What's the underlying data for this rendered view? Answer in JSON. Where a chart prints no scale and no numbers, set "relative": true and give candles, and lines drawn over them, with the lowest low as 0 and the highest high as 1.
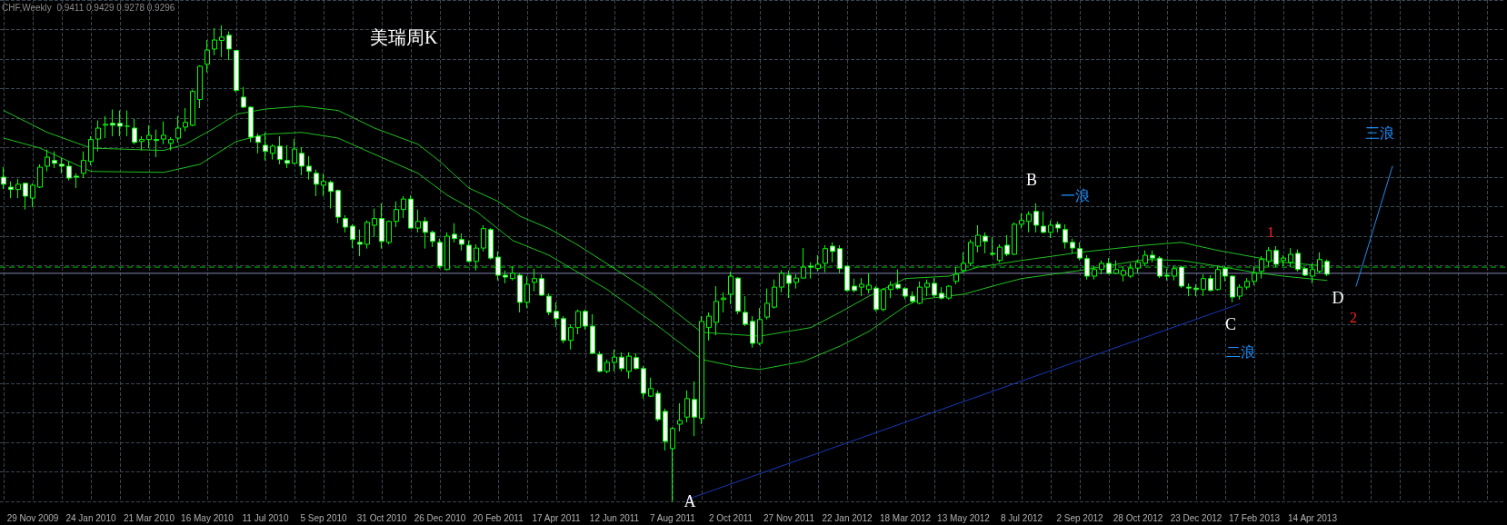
{
  "chart_data": {
    "type": "candlestick",
    "title": "美瑞周K",
    "relative": true,
    "grid": true,
    "tick_labels": "x",
    "annotations": [
      "CHF,Weekly  0.9411 0.9429 0.9278 0.9296",
      {
        "text": "A",
        "y": 0
      },
      {
        "text": "B",
        "y": 0.586
      },
      "一浪",
      {
        "text": "C",
        "y": 0.431
      },
      "二浪",
      "1",
      "D",
      "2",
      "三浪"
    ],
    "categories": [
      null,
      null,
      null,
      null,
      "29 Nov 2009",
      null,
      null,
      null,
      null,
      null,
      null,
      null,
      "24 Jan 2010",
      null,
      null,
      null,
      null,
      null,
      null,
      null,
      "21 Mar 2010",
      null,
      null,
      null,
      null,
      null,
      null,
      null,
      "16 May 2010",
      null,
      null,
      null,
      null,
      null,
      null,
      null,
      "11 Jul 2010",
      null,
      null,
      null,
      null,
      null,
      null,
      null,
      "5 Sep 2010",
      null,
      null,
      null,
      null,
      null,
      null,
      null,
      "31 Oct 2010",
      null,
      null,
      null,
      null,
      null,
      null,
      null,
      "26 Dec 2010",
      null,
      null,
      null,
      null,
      null,
      null,
      null,
      "20 Feb 2011",
      null,
      null,
      null,
      null,
      null,
      null,
      null,
      "17 Apr 2011",
      null,
      null,
      null,
      null,
      null,
      null,
      null,
      "12 Jun 2011",
      null,
      null,
      null,
      null,
      null,
      null,
      null,
      "7 Aug 2011",
      null,
      null,
      null,
      null,
      null,
      null,
      null,
      "2 Oct 2011",
      null,
      null,
      null,
      null,
      null,
      null,
      null,
      "27 Nov 2011",
      null,
      null,
      null,
      null,
      null,
      null,
      null,
      "22 Jan 2012",
      null,
      null,
      null,
      null,
      null,
      null,
      null,
      "18 Mar 2012",
      null,
      null,
      null,
      null,
      null,
      null,
      null,
      "13 May 2012",
      null,
      null,
      null,
      null,
      null,
      null,
      null,
      "8 Jul 2012",
      null,
      null,
      null,
      null,
      null,
      null,
      null,
      "2 Sep 2012",
      null,
      null,
      null,
      null,
      null,
      null,
      null,
      "28 Oct 2012",
      null,
      null,
      null,
      null,
      null,
      null,
      null,
      "23 Dec 2012",
      null,
      null,
      null,
      null,
      null,
      null,
      null,
      "17 Feb 2013",
      null,
      null,
      null,
      null,
      null,
      null,
      null,
      "14 Apr 2013",
      null,
      null,
      null,
      null,
      null,
      null,
      null,
      null,
      null,
      null,
      null,
      null,
      null,
      null,
      null,
      null,
      null,
      null,
      null,
      null,
      null,
      null,
      null,
      null,
      null,
      null
    ],
    "ref_lines": [
      {
        "axis": "y",
        "value": 0.492,
        "color": "#00c000",
        "line_style": "dashed"
      },
      {
        "axis": "y",
        "value": 0.479,
        "color": "#8080b0",
        "line_style": "solid"
      }
    ],
    "series": [
      {
        "color": "#00ff00",
        "ohlc": [
          [
            0.681,
            0.702,
            0.656,
            0.666
          ],
          [
            0.66,
            0.672,
            0.637,
            0.655
          ],
          [
            0.655,
            0.677,
            0.637,
            0.666
          ],
          [
            0.668,
            0.668,
            0.613,
            0.641
          ],
          [
            0.637,
            0.668,
            0.618,
            0.664
          ],
          [
            0.66,
            0.708,
            0.658,
            0.702
          ],
          [
            0.704,
            0.739,
            0.693,
            0.723
          ],
          [
            0.716,
            0.735,
            0.7,
            0.71
          ],
          [
            0.708,
            0.721,
            0.689,
            0.704
          ],
          [
            0.704,
            0.714,
            0.674,
            0.679
          ],
          [
            0.683,
            0.689,
            0.658,
            0.681
          ],
          [
            0.689,
            0.735,
            0.679,
            0.716
          ],
          [
            0.714,
            0.767,
            0.706,
            0.76
          ],
          [
            0.761,
            0.8,
            0.735,
            0.784
          ],
          [
            0.79,
            0.809,
            0.763,
            0.792
          ],
          [
            0.794,
            0.823,
            0.767,
            0.79
          ],
          [
            0.794,
            0.821,
            0.767,
            0.788
          ],
          [
            0.788,
            0.821,
            0.767,
            0.788
          ],
          [
            0.784,
            0.803,
            0.75,
            0.754
          ],
          [
            0.756,
            0.767,
            0.737,
            0.76
          ],
          [
            0.76,
            0.79,
            0.742,
            0.769
          ],
          [
            0.76,
            0.781,
            0.723,
            0.758
          ],
          [
            0.761,
            0.798,
            0.75,
            0.769
          ],
          [
            0.752,
            0.765,
            0.737,
            0.76
          ],
          [
            0.763,
            0.809,
            0.754,
            0.784
          ],
          [
            0.786,
            0.826,
            0.777,
            0.796
          ],
          [
            0.79,
            0.865,
            0.788,
            0.861
          ],
          [
            0.844,
            0.916,
            0.826,
            0.914
          ],
          [
            0.918,
            0.969,
            0.901,
            0.948
          ],
          [
            0.95,
            0.994,
            0.937,
            0.969
          ],
          [
            0.968,
            1,
            0.933,
            0.975
          ],
          [
            0.979,
            0.987,
            0.927,
            0.95
          ],
          [
            0.947,
            0.947,
            0.859,
            0.863
          ],
          [
            0.849,
            0.87,
            0.826,
            0.828
          ],
          [
            0.828,
            0.83,
            0.754,
            0.765
          ],
          [
            0.767,
            0.773,
            0.731,
            0.754
          ],
          [
            0.748,
            0.775,
            0.716,
            0.735
          ],
          [
            0.731,
            0.75,
            0.718,
            0.746
          ],
          [
            0.746,
            0.767,
            0.708,
            0.718
          ],
          [
            0.716,
            0.748,
            0.7,
            0.71
          ],
          [
            0.71,
            0.761,
            0.708,
            0.74
          ],
          [
            0.731,
            0.744,
            0.685,
            0.704
          ],
          [
            0.704,
            0.725,
            0.676,
            0.693
          ],
          [
            0.689,
            0.697,
            0.641,
            0.666
          ],
          [
            0.664,
            0.689,
            0.641,
            0.672
          ],
          [
            0.67,
            0.674,
            0.615,
            0.651
          ],
          [
            0.653,
            0.655,
            0.584,
            0.597
          ],
          [
            0.594,
            0.601,
            0.565,
            0.576
          ],
          [
            0.578,
            0.582,
            0.532,
            0.55
          ],
          [
            0.544,
            0.571,
            0.515,
            0.54
          ],
          [
            0.54,
            0.59,
            0.531,
            0.586
          ],
          [
            0.58,
            0.615,
            0.555,
            0.594
          ],
          [
            0.594,
            0.626,
            0.531,
            0.546
          ],
          [
            0.544,
            0.59,
            0.54,
            0.588
          ],
          [
            0.588,
            0.63,
            0.576,
            0.613
          ],
          [
            0.613,
            0.641,
            0.595,
            0.635
          ],
          [
            0.635,
            0.643,
            0.573,
            0.574
          ],
          [
            0.574,
            0.613,
            0.565,
            0.588
          ],
          [
            0.588,
            0.597,
            0.531,
            0.565
          ],
          [
            0.565,
            0.569,
            0.534,
            0.546
          ],
          [
            0.544,
            0.552,
            0.489,
            0.494
          ],
          [
            0.487,
            0.565,
            0.485,
            0.557
          ],
          [
            0.561,
            0.584,
            0.544,
            0.552
          ],
          [
            0.55,
            0.563,
            0.527,
            0.54
          ],
          [
            0.538,
            0.548,
            0.502,
            0.504
          ],
          [
            0.504,
            0.54,
            0.485,
            0.532
          ],
          [
            0.532,
            0.58,
            0.525,
            0.573
          ],
          [
            0.571,
            0.574,
            0.508,
            0.511
          ],
          [
            0.513,
            0.525,
            0.464,
            0.475
          ],
          [
            0.475,
            0.485,
            0.458,
            0.471
          ],
          [
            0.468,
            0.494,
            0.464,
            0.479
          ],
          [
            0.475,
            0.479,
            0.397,
            0.418
          ],
          [
            0.418,
            0.473,
            0.406,
            0.456
          ],
          [
            0.46,
            0.489,
            0.441,
            0.468
          ],
          [
            0.468,
            0.477,
            0.431,
            0.433
          ],
          [
            0.431,
            0.437,
            0.391,
            0.397
          ],
          [
            0.399,
            0.418,
            0.366,
            0.384
          ],
          [
            0.384,
            0.389,
            0.332,
            0.338
          ],
          [
            0.338,
            0.372,
            0.319,
            0.365
          ],
          [
            0.365,
            0.403,
            0.351,
            0.399
          ],
          [
            0.399,
            0.403,
            0.361,
            0.368
          ],
          [
            0.368,
            0.393,
            0.309,
            0.311
          ],
          [
            0.309,
            0.315,
            0.271,
            0.273
          ],
          [
            0.273,
            0.298,
            0.269,
            0.292
          ],
          [
            0.292,
            0.319,
            0.273,
            0.303
          ],
          [
            0.303,
            0.313,
            0.273,
            0.279
          ],
          [
            0.273,
            0.313,
            0.258,
            0.305
          ],
          [
            0.302,
            0.311,
            0.277,
            0.279
          ],
          [
            0.279,
            0.284,
            0.216,
            0.227
          ],
          [
            0.221,
            0.26,
            0.219,
            0.237
          ],
          [
            0.227,
            0.233,
            0.168,
            0.172
          ],
          [
            0.189,
            0.195,
            0.107,
            0.126
          ],
          [
            0.111,
            0.156,
            0,
            0.153
          ],
          [
            0.162,
            0.206,
            0.147,
            0.17
          ],
          [
            0.177,
            0.233,
            0.166,
            0.216
          ],
          [
            0.214,
            0.252,
            0.137,
            0.177
          ],
          [
            0.174,
            0.389,
            0.162,
            0.378
          ],
          [
            0.365,
            0.397,
            0.338,
            0.389
          ],
          [
            0.376,
            0.452,
            0.349,
            0.42
          ],
          [
            0.424,
            0.439,
            0.397,
            0.427
          ],
          [
            0.435,
            0.483,
            0.414,
            0.473
          ],
          [
            0.469,
            0.471,
            0.393,
            0.399
          ],
          [
            0.397,
            0.431,
            0.368,
            0.372
          ],
          [
            0.378,
            0.389,
            0.323,
            0.332
          ],
          [
            0.332,
            0.406,
            0.328,
            0.382
          ],
          [
            0.387,
            0.447,
            0.382,
            0.416
          ],
          [
            0.408,
            0.466,
            0.405,
            0.45
          ],
          [
            0.45,
            0.485,
            0.439,
            0.479
          ],
          [
            0.475,
            0.485,
            0.427,
            0.458
          ],
          [
            0.46,
            0.477,
            0.447,
            0.469
          ],
          [
            0.469,
            0.532,
            0.468,
            0.492
          ],
          [
            0.494,
            0.502,
            0.468,
            0.492
          ],
          [
            0.489,
            0.517,
            0.483,
            0.498
          ],
          [
            0.5,
            0.538,
            0.481,
            0.531
          ],
          [
            0.536,
            0.544,
            0.502,
            0.525
          ],
          [
            0.531,
            0.538,
            0.479,
            0.489
          ],
          [
            0.494,
            0.494,
            0.441,
            0.443
          ],
          [
            0.452,
            0.468,
            0.439,
            0.443
          ],
          [
            0.45,
            0.469,
            0.431,
            0.456
          ],
          [
            0.445,
            0.479,
            0.437,
            0.454
          ],
          [
            0.448,
            0.452,
            0.399,
            0.403
          ],
          [
            0.403,
            0.448,
            0.399,
            0.445
          ],
          [
            0.445,
            0.462,
            0.427,
            0.454
          ],
          [
            0.456,
            0.487,
            0.445,
            0.448
          ],
          [
            0.447,
            0.45,
            0.424,
            0.431
          ],
          [
            0.431,
            0.441,
            0.416,
            0.42
          ],
          [
            0.416,
            0.462,
            0.414,
            0.45
          ],
          [
            0.45,
            0.466,
            0.431,
            0.458
          ],
          [
            0.458,
            0.469,
            0.429,
            0.433
          ],
          [
            0.437,
            0.45,
            0.424,
            0.427
          ],
          [
            0.427,
            0.454,
            0.424,
            0.452
          ],
          [
            0.462,
            0.492,
            0.456,
            0.477
          ],
          [
            0.485,
            0.523,
            0.481,
            0.5
          ],
          [
            0.5,
            0.55,
            0.494,
            0.544
          ],
          [
            0.536,
            0.58,
            0.523,
            0.559
          ],
          [
            0.557,
            0.565,
            0.521,
            0.546
          ],
          [
            0.521,
            0.555,
            0.515,
            0.519
          ],
          [
            0.506,
            0.54,
            0.502,
            0.534
          ],
          [
            0.538,
            0.559,
            0.515,
            0.519
          ],
          [
            0.519,
            0.586,
            0.517,
            0.582
          ],
          [
            0.582,
            0.605,
            0.573,
            0.59
          ],
          [
            0.588,
            0.609,
            0.565,
            0.603
          ],
          [
            0.609,
            0.626,
            0.565,
            0.58
          ],
          [
            0.578,
            0.609,
            0.563,
            0.565
          ],
          [
            0.565,
            0.59,
            0.553,
            0.58
          ],
          [
            0.582,
            0.588,
            0.565,
            0.574
          ],
          [
            0.571,
            0.582,
            0.531,
            0.544
          ],
          [
            0.544,
            0.552,
            0.521,
            0.532
          ],
          [
            0.531,
            0.544,
            0.506,
            0.511
          ],
          [
            0.51,
            0.517,
            0.466,
            0.473
          ],
          [
            0.473,
            0.494,
            0.466,
            0.487
          ],
          [
            0.487,
            0.506,
            0.477,
            0.5
          ],
          [
            0.5,
            0.511,
            0.477,
            0.479
          ],
          [
            0.479,
            0.506,
            0.477,
            0.487
          ],
          [
            0.475,
            0.494,
            0.462,
            0.485
          ],
          [
            0.473,
            0.5,
            0.469,
            0.49
          ],
          [
            0.49,
            0.508,
            0.479,
            0.502
          ],
          [
            0.5,
            0.527,
            0.494,
            0.517
          ],
          [
            0.517,
            0.527,
            0.502,
            0.511
          ],
          [
            0.511,
            0.515,
            0.469,
            0.473
          ],
          [
            0.475,
            0.489,
            0.464,
            0.473
          ],
          [
            0.473,
            0.494,
            0.464,
            0.489
          ],
          [
            0.492,
            0.494,
            0.448,
            0.452
          ],
          [
            0.45,
            0.458,
            0.431,
            0.448
          ],
          [
            0.448,
            0.456,
            0.431,
            0.445
          ],
          [
            0.445,
            0.477,
            0.431,
            0.468
          ],
          [
            0.468,
            0.475,
            0.441,
            0.443
          ],
          [
            0.445,
            0.494,
            0.443,
            0.487
          ],
          [
            0.489,
            0.494,
            0.462,
            0.473
          ],
          [
            0.473,
            0.475,
            0.418,
            0.429
          ],
          [
            0.431,
            0.456,
            0.424,
            0.45
          ],
          [
            0.45,
            0.469,
            0.445,
            0.462
          ],
          [
            0.462,
            0.494,
            0.454,
            0.479
          ],
          [
            0.483,
            0.515,
            0.468,
            0.508
          ],
          [
            0.504,
            0.534,
            0.492,
            0.527
          ],
          [
            0.527,
            0.536,
            0.492,
            0.498
          ],
          [
            0.506,
            0.517,
            0.494,
            0.511
          ],
          [
            0.502,
            0.532,
            0.492,
            0.519
          ],
          [
            0.521,
            0.529,
            0.483,
            0.487
          ],
          [
            0.489,
            0.492,
            0.473,
            0.475
          ],
          [
            0.473,
            0.5,
            0.458,
            0.487
          ],
          [
            0.483,
            0.523,
            0.479,
            0.508
          ],
          [
            0.504,
            0.508,
            0.473,
            0.477
          ],
          null,
          null,
          null,
          null,
          null,
          null,
          null,
          null,
          null,
          null,
          null,
          null,
          null,
          null,
          null,
          null,
          null,
          null,
          null,
          null,
          null,
          null,
          null,
          null
        ]
      },
      {
        "type": "line",
        "color": "#20c020",
        "values": [
          0.821,
          null,
          null,
          null,
          null,
          null,
          0.775,
          null,
          null,
          null,
          null,
          null,
          0.742,
          null,
          null,
          null,
          null,
          null,
          null,
          null,
          null,
          null,
          0.737,
          null,
          null,
          0.75,
          null,
          null,
          null,
          0.784,
          null,
          null,
          0.813,
          null,
          null,
          null,
          0.824,
          null,
          null,
          null,
          null,
          0.83,
          null,
          null,
          null,
          null,
          0.821,
          null,
          null,
          null,
          null,
          0.784,
          null,
          null,
          null,
          null,
          null,
          0.75,
          null,
          null,
          0.714,
          null,
          null,
          null,
          0.658,
          null,
          null,
          null,
          0.63,
          null,
          null,
          0.599,
          null,
          null,
          null,
          0.573,
          null,
          null,
          null,
          0.538,
          null,
          null,
          null,
          null,
          0.489,
          null,
          null,
          null,
          null,
          0.439,
          null,
          null,
          0.403,
          null,
          null,
          null,
          0.355,
          null,
          null,
          null,
          null,
          null,
          null,
          null,
          0.347,
          null,
          null,
          null,
          null,
          null,
          null,
          0.365,
          null,
          null,
          null,
          0.397,
          null,
          null,
          null,
          0.431,
          null,
          null,
          null,
          null,
          0.468,
          null,
          null,
          null,
          null,
          null,
          0.473,
          null,
          null,
          null,
          0.492,
          null,
          null,
          null,
          null,
          null,
          0.506,
          null,
          null,
          null,
          null,
          null,
          null,
          null,
          0.523,
          null,
          null,
          null,
          null,
          null,
          null,
          null,
          null,
          0.538,
          null,
          null,
          null,
          null,
          0.544,
          null,
          null,
          null,
          null,
          0.527,
          null,
          null,
          null,
          null,
          0.513,
          null,
          null,
          null,
          0.502,
          null,
          null,
          null,
          null,
          null,
          0.494,
          null,
          null,
          null,
          null,
          null,
          null,
          null,
          null,
          null,
          null,
          null,
          null,
          null,
          null,
          null,
          null,
          null,
          null,
          null,
          null,
          null,
          null,
          null,
          null
        ]
      },
      {
        "type": "line",
        "color": "#20c020",
        "values": [
          0.763,
          null,
          null,
          null,
          null,
          0.742,
          null,
          null,
          null,
          null,
          null,
          null,
          0.693,
          null,
          null,
          null,
          null,
          null,
          null,
          null,
          null,
          null,
          0.691,
          null,
          null,
          null,
          null,
          0.708,
          null,
          null,
          null,
          null,
          0.756,
          null,
          null,
          null,
          0.771,
          null,
          null,
          null,
          null,
          0.775,
          null,
          null,
          null,
          null,
          0.763,
          null,
          null,
          null,
          null,
          0.729,
          null,
          null,
          null,
          null,
          null,
          0.689,
          null,
          null,
          null,
          0.643,
          null,
          null,
          null,
          0.609,
          null,
          null,
          null,
          null,
          0.548,
          null,
          null,
          null,
          null,
          0.517,
          null,
          null,
          null,
          null,
          null,
          null,
          null,
          0.445,
          null,
          null,
          null,
          null,
          null,
          null,
          0.368,
          null,
          null,
          null,
          null,
          null,
          0.298,
          null,
          null,
          null,
          null,
          0.282,
          null,
          null,
          0.277,
          null,
          null,
          null,
          null,
          null,
          0.294,
          null,
          null,
          null,
          null,
          0.326,
          null,
          null,
          null,
          0.357,
          null,
          null,
          null,
          null,
          0.41,
          null,
          0.424,
          null,
          null,
          null,
          null,
          null,
          0.435,
          null,
          null,
          null,
          0.452,
          null,
          null,
          null,
          0.468,
          null,
          null,
          null,
          null,
          null,
          null,
          null,
          0.485,
          null,
          null,
          null,
          null,
          null,
          null,
          null,
          null,
          0.508,
          null,
          null,
          null,
          null,
          0.506,
          null,
          null,
          null,
          null,
          0.494,
          null,
          null,
          null,
          null,
          0.481,
          null,
          null,
          null,
          0.473,
          null,
          null,
          null,
          null,
          null,
          0.464,
          null,
          null,
          null,
          null,
          null,
          null,
          null,
          null,
          null,
          null,
          null,
          null,
          null,
          null,
          null,
          null,
          null,
          null,
          null,
          null,
          null,
          null,
          null,
          null
        ]
      },
      {
        "type": "line",
        "color": "#1838b8",
        "values": [
          null,
          null,
          null,
          null,
          null,
          null,
          null,
          null,
          null,
          null,
          null,
          null,
          null,
          null,
          null,
          null,
          null,
          null,
          null,
          null,
          null,
          null,
          null,
          null,
          null,
          null,
          null,
          null,
          null,
          null,
          null,
          null,
          null,
          null,
          null,
          null,
          null,
          null,
          null,
          null,
          null,
          null,
          null,
          null,
          null,
          null,
          null,
          null,
          null,
          null,
          null,
          null,
          null,
          null,
          null,
          null,
          null,
          null,
          null,
          null,
          null,
          null,
          null,
          null,
          null,
          null,
          null,
          null,
          null,
          null,
          null,
          null,
          null,
          null,
          null,
          null,
          null,
          null,
          null,
          null,
          null,
          null,
          null,
          null,
          null,
          null,
          null,
          null,
          null,
          null,
          null,
          null,
          null,
          null,
          0.004,
          null,
          null,
          null,
          null,
          null,
          null,
          null,
          null,
          null,
          null,
          null,
          null,
          null,
          null,
          null,
          null,
          null,
          null,
          null,
          null,
          null,
          null,
          null,
          null,
          null,
          null,
          null,
          null,
          null,
          null,
          null,
          null,
          null,
          null,
          null,
          null,
          null,
          null,
          null,
          null,
          null,
          null,
          null,
          null,
          null,
          null,
          null,
          null,
          null,
          null,
          null,
          null,
          null,
          null,
          null,
          null,
          null,
          null,
          null,
          null,
          null,
          null,
          null,
          null,
          null,
          null,
          null,
          null,
          null,
          null,
          null,
          null,
          null,
          null,
          null,
          0.415,
          null,
          null,
          null,
          null,
          null,
          null,
          null,
          null,
          null,
          null,
          null,
          null,
          null,
          null,
          null,
          null,
          null,
          null,
          null,
          null,
          null,
          null,
          null,
          null,
          null,
          null,
          null,
          null,
          null,
          null,
          null,
          null,
          null,
          null,
          null,
          null
        ]
      },
      {
        "type": "line",
        "color": "#1e8cf0",
        "values": [
          null,
          null,
          null,
          null,
          null,
          null,
          null,
          null,
          null,
          null,
          null,
          null,
          null,
          null,
          null,
          null,
          null,
          null,
          null,
          null,
          null,
          null,
          null,
          null,
          null,
          null,
          null,
          null,
          null,
          null,
          null,
          null,
          null,
          null,
          null,
          null,
          null,
          null,
          null,
          null,
          null,
          null,
          null,
          null,
          null,
          null,
          null,
          null,
          null,
          null,
          null,
          null,
          null,
          null,
          null,
          null,
          null,
          null,
          null,
          null,
          null,
          null,
          null,
          null,
          null,
          null,
          null,
          null,
          null,
          null,
          null,
          null,
          null,
          null,
          null,
          null,
          null,
          null,
          null,
          null,
          null,
          null,
          null,
          null,
          null,
          null,
          null,
          null,
          null,
          null,
          null,
          null,
          null,
          null,
          null,
          null,
          null,
          null,
          null,
          null,
          null,
          null,
          null,
          null,
          null,
          null,
          null,
          null,
          null,
          null,
          null,
          null,
          null,
          null,
          null,
          null,
          null,
          null,
          null,
          null,
          null,
          null,
          null,
          null,
          null,
          null,
          null,
          null,
          null,
          null,
          null,
          null,
          null,
          null,
          null,
          null,
          null,
          null,
          null,
          null,
          null,
          null,
          null,
          null,
          null,
          null,
          null,
          null,
          null,
          null,
          null,
          null,
          null,
          null,
          null,
          null,
          null,
          null,
          null,
          null,
          null,
          null,
          null,
          null,
          null,
          null,
          null,
          null,
          null,
          null,
          null,
          null,
          null,
          null,
          null,
          null,
          null,
          null,
          null,
          null,
          null,
          null,
          null,
          null,
          null,
          null,
          0.452,
          null,
          null,
          null,
          null,
          0.704,
          null,
          null,
          null,
          null,
          null,
          null,
          null,
          null,
          null,
          null,
          null,
          null,
          null,
          null,
          null
        ]
      }
    ]
  }
}
